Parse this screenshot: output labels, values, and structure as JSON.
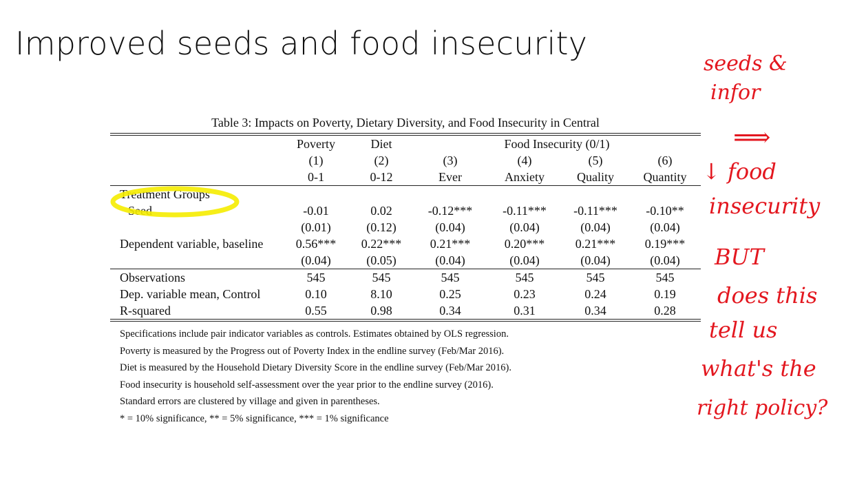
{
  "slide": {
    "title": "Improved seeds and food insecurity"
  },
  "table": {
    "caption": "Table 3: Impacts on Poverty, Dietary Diversity, and Food Insecurity in Central",
    "header": {
      "groups": [
        "Poverty",
        "Diet",
        "Food Insecurity (0/1)"
      ],
      "numbers": [
        "(1)",
        "(2)",
        "(3)",
        "(4)",
        "(5)",
        "(6)"
      ],
      "subheads": [
        "0-1",
        "0-12",
        "Ever",
        "Anxiety",
        "Quality",
        "Quantity"
      ]
    },
    "section_label": "Treatment Groups",
    "rows": [
      {
        "label": "Seed",
        "values": [
          "-0.01",
          "0.02",
          "-0.12***",
          "-0.11***",
          "-0.11***",
          "-0.10**"
        ]
      },
      {
        "label": "",
        "values": [
          "(0.01)",
          "(0.12)",
          "(0.04)",
          "(0.04)",
          "(0.04)",
          "(0.04)"
        ]
      },
      {
        "label": "Dependent variable, baseline",
        "values": [
          "0.56***",
          "0.22***",
          "0.21***",
          "0.20***",
          "0.21***",
          "0.19***"
        ]
      },
      {
        "label": "",
        "values": [
          "(0.04)",
          "(0.05)",
          "(0.04)",
          "(0.04)",
          "(0.04)",
          "(0.04)"
        ]
      },
      {
        "label": "Observations",
        "values": [
          "545",
          "545",
          "545",
          "545",
          "545",
          "545"
        ]
      },
      {
        "label": "Dep. variable mean, Control",
        "values": [
          "0.10",
          "8.10",
          "0.25",
          "0.23",
          "0.24",
          "0.19"
        ]
      },
      {
        "label": "R-squared",
        "values": [
          "0.55",
          "0.98",
          "0.34",
          "0.31",
          "0.34",
          "0.28"
        ]
      }
    ],
    "notes": [
      "Specifications include pair indicator variables as controls. Estimates obtained by OLS regression.",
      "Poverty is measured by the Progress out of Poverty Index in the endline survey (Feb/Mar 2016).",
      "Diet is measured by the Household Dietary Diversity Score in the endline survey (Feb/Mar 2016).",
      "Food insecurity is household self-assessment over the year prior to the endline survey (2016).",
      "Standard errors are clustered by village and given in parentheses.",
      "* = 10% significance, ** = 5% significance, *** = 1% significance"
    ]
  },
  "annotation": {
    "color": "#e3171f",
    "highlight_color": "#f5ec00",
    "lines": [
      "seeds &",
      "infor",
      "⟹",
      "↓ food",
      "insecurity",
      "BUT",
      "does this",
      "tell us",
      "what's the",
      "right policy?"
    ]
  }
}
